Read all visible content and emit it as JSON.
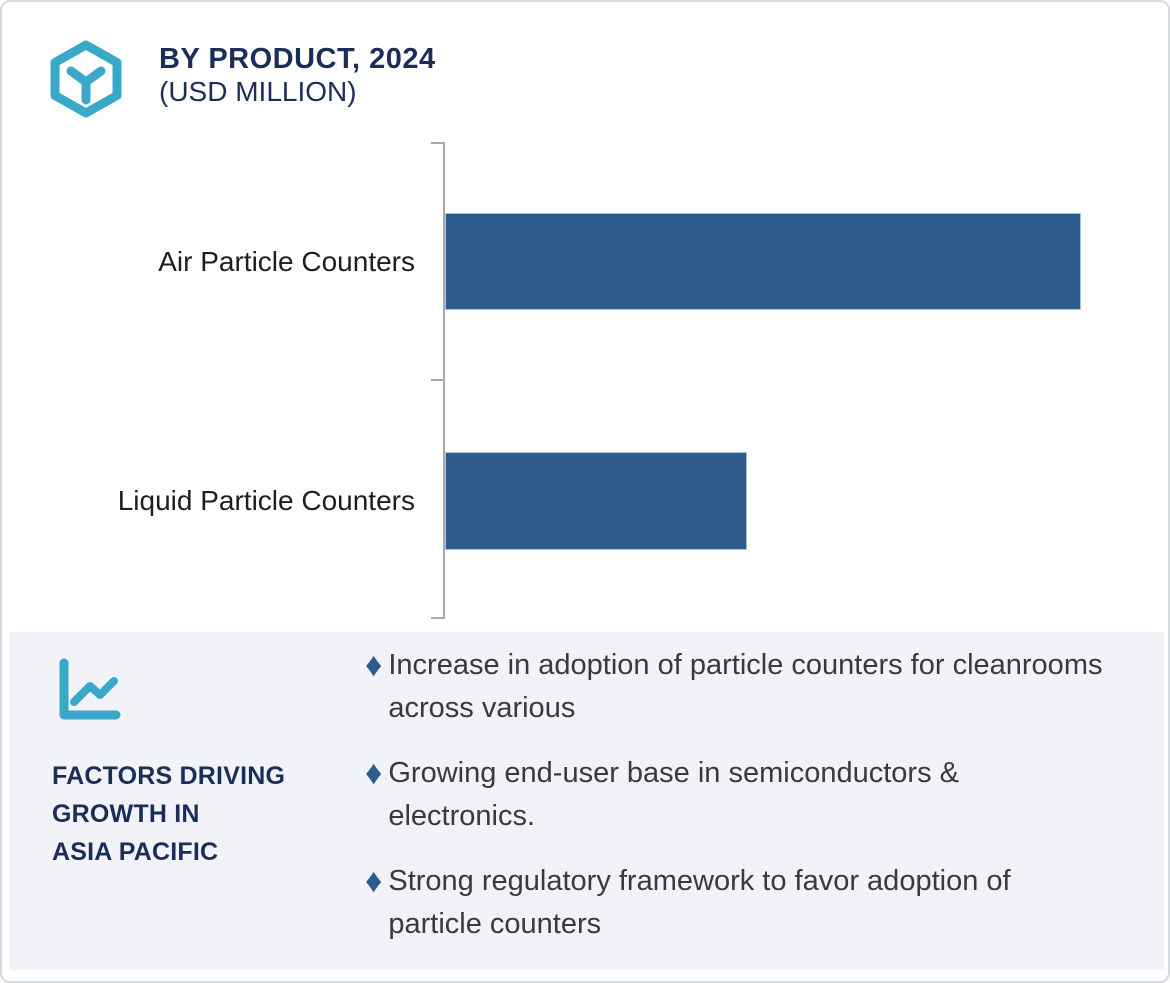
{
  "header": {
    "logo_icon": "hexagon-cube-icon",
    "title": "BY PRODUCT, 2024",
    "subtitle": "(USD MILLION)"
  },
  "chart_data": {
    "type": "bar",
    "orientation": "horizontal",
    "title": "BY PRODUCT, 2024 (USD MILLION)",
    "categories": [
      "Air Particle Counters",
      "Liquid Particle Counters"
    ],
    "values": [
      1.0,
      0.475
    ],
    "value_labels_shown": false,
    "value_axis_shown": false,
    "xlabel": "",
    "ylabel": "",
    "xlim": [
      0,
      1.13
    ],
    "grid": false,
    "legend": "none",
    "bar_color": "#2d5c8c",
    "axis_color": "#a9a9a9"
  },
  "factors_panel": {
    "icon": "line-chart-icon",
    "heading_lines": [
      "FACTORS DRIVING",
      "GROWTH IN",
      "ASIA PACIFIC"
    ],
    "bullet_icon": "diamond-bullet-icon",
    "bullet_glyph": "♦",
    "bullets": [
      {
        "text": "Increase in adoption of particle counters for cleanrooms across various"
      },
      {
        "text": "Growing end-user base in semiconductors & electronics."
      },
      {
        "text": "Strong regulatory framework to favor adoption of particle counters"
      }
    ]
  },
  "colors": {
    "accent_teal": "#3aa9c9",
    "navy": "#1b2e58",
    "bar_blue": "#2d5c8c",
    "panel_background": "#f2f3f8",
    "axis_gray": "#a9a9a9",
    "body_text": "#3a3a3a",
    "card_border": "#d6d9de"
  }
}
